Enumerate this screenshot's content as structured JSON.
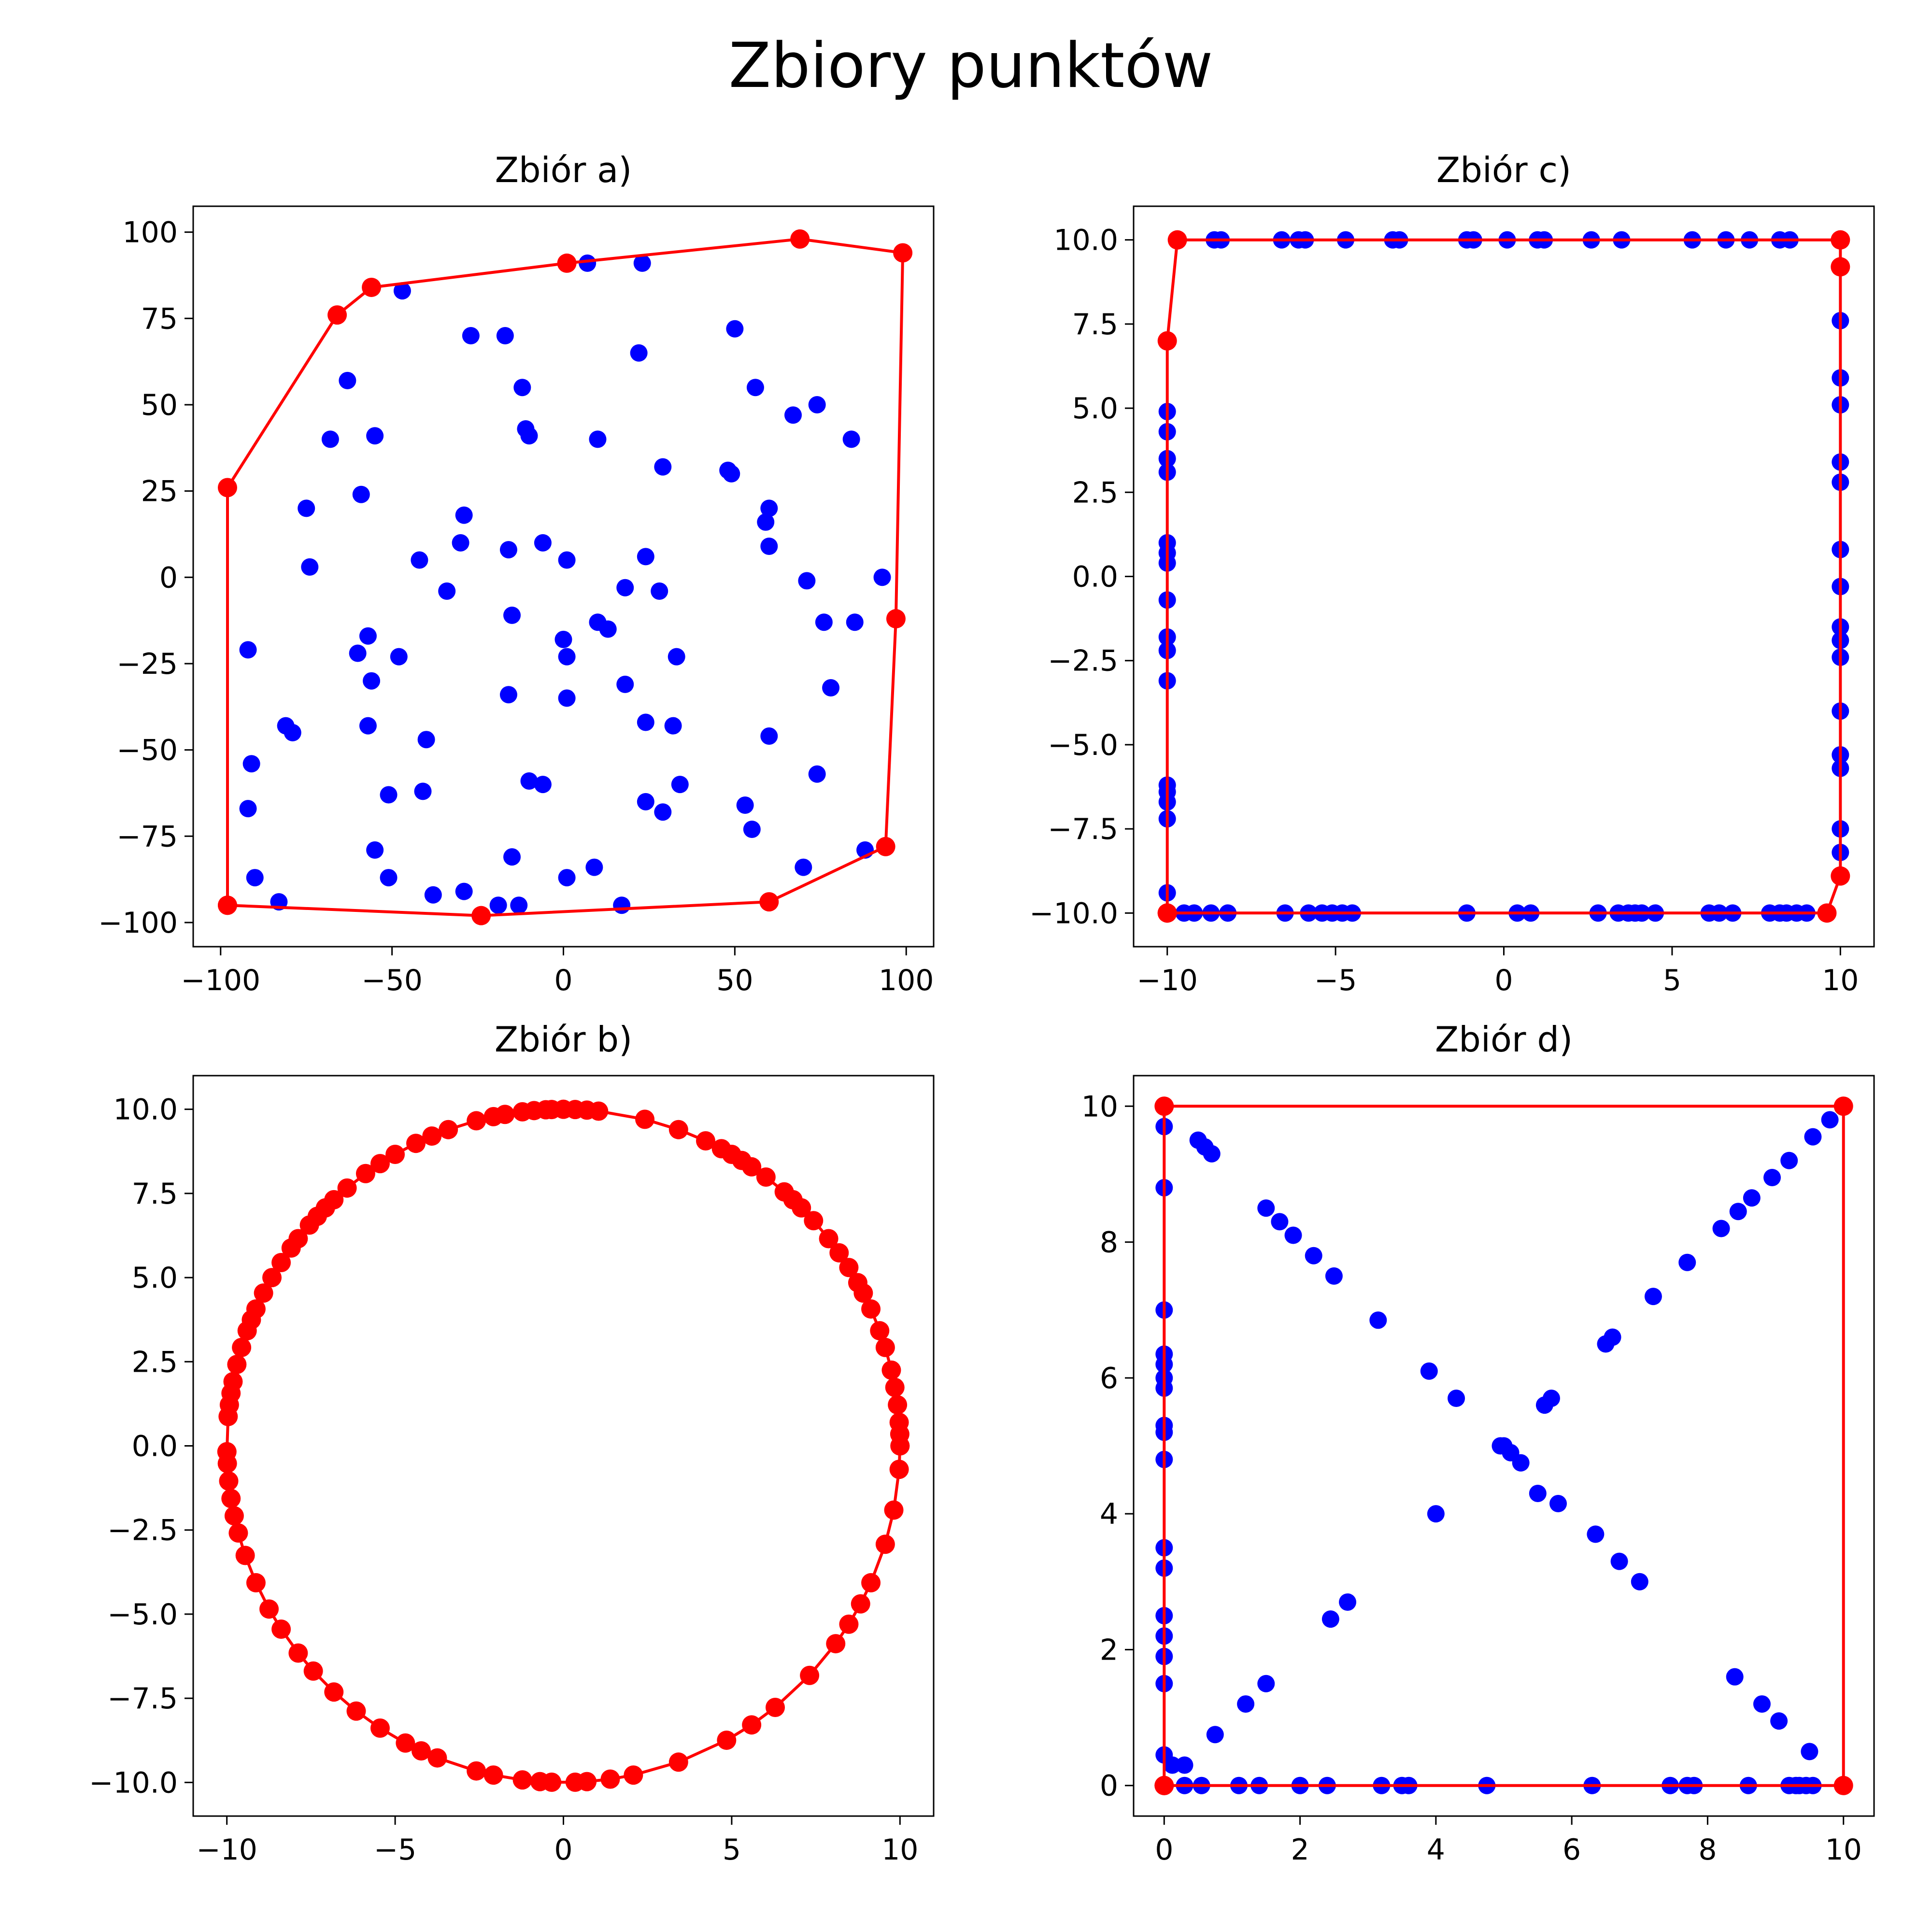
{
  "figure": {
    "title": "Zbiory punktów",
    "colors": {
      "points": "#0000ff",
      "hull": "#ff0000"
    }
  },
  "chart_data": [
    {
      "type": "scatter",
      "title": "Zbiór a)",
      "xlabel": "",
      "ylabel": "",
      "xlim": [
        -108,
        108
      ],
      "ylim": [
        -107,
        107.5
      ],
      "xticks": [
        -100,
        -50,
        0,
        50,
        100
      ],
      "yticks": [
        -100,
        -75,
        -50,
        -25,
        0,
        25,
        50,
        75,
        100
      ],
      "xtick_labels": [
        "−100",
        "−50",
        "0",
        "50",
        "100"
      ],
      "ytick_labels": [
        "−100",
        "−75",
        "−50",
        "−25",
        "0",
        "25",
        "50",
        "75",
        "100"
      ],
      "grid": false,
      "points": [
        [
          7,
          91
        ],
        [
          23,
          91
        ],
        [
          -47,
          83
        ],
        [
          -27,
          70
        ],
        [
          -17,
          70
        ],
        [
          22,
          65
        ],
        [
          50,
          72
        ],
        [
          -63,
          57
        ],
        [
          -12,
          55
        ],
        [
          56,
          55
        ],
        [
          67,
          47
        ],
        [
          74,
          50
        ],
        [
          -68,
          40
        ],
        [
          -55,
          41
        ],
        [
          -11,
          43
        ],
        [
          -10,
          41
        ],
        [
          10,
          40
        ],
        [
          84,
          40
        ],
        [
          29,
          32
        ],
        [
          48,
          31
        ],
        [
          49,
          30
        ],
        [
          -75,
          20
        ],
        [
          -59,
          24
        ],
        [
          -29,
          18
        ],
        [
          60,
          20
        ],
        [
          59,
          16
        ],
        [
          -16,
          8
        ],
        [
          -30,
          10
        ],
        [
          -6,
          10
        ],
        [
          60,
          9
        ],
        [
          24,
          6
        ],
        [
          1,
          5
        ],
        [
          -42,
          5
        ],
        [
          -74,
          3
        ],
        [
          71,
          -1
        ],
        [
          93,
          0
        ],
        [
          -34,
          -4
        ],
        [
          18,
          -3
        ],
        [
          28,
          -4
        ],
        [
          -15,
          -11
        ],
        [
          10,
          -13
        ],
        [
          13,
          -15
        ],
        [
          -92,
          -21
        ],
        [
          -57,
          -17
        ],
        [
          0,
          -18
        ],
        [
          -60,
          -22
        ],
        [
          -48,
          -23
        ],
        [
          1,
          -23
        ],
        [
          33,
          -23
        ],
        [
          85,
          -13
        ],
        [
          76,
          -13
        ],
        [
          -56,
          -30
        ],
        [
          18,
          -31
        ],
        [
          78,
          -32
        ],
        [
          -16,
          -34
        ],
        [
          1,
          -35
        ],
        [
          -81,
          -43
        ],
        [
          -79,
          -45
        ],
        [
          -57,
          -43
        ],
        [
          24,
          -42
        ],
        [
          32,
          -43
        ],
        [
          -40,
          -47
        ],
        [
          60,
          -46
        ],
        [
          -91,
          -54
        ],
        [
          -10,
          -59
        ],
        [
          -6,
          -60
        ],
        [
          74,
          -57
        ],
        [
          -51,
          -63
        ],
        [
          -41,
          -62
        ],
        [
          34,
          -60
        ],
        [
          -92,
          -67
        ],
        [
          24,
          -65
        ],
        [
          29,
          -68
        ],
        [
          53,
          -66
        ],
        [
          -55,
          -79
        ],
        [
          55,
          -73
        ],
        [
          -15,
          -81
        ],
        [
          -90,
          -87
        ],
        [
          -51,
          -87
        ],
        [
          1,
          -87
        ],
        [
          9,
          -84
        ],
        [
          70,
          -84
        ],
        [
          88,
          -79
        ],
        [
          -38,
          -92
        ],
        [
          -29,
          -91
        ],
        [
          -83,
          -94
        ],
        [
          -19,
          -95
        ],
        [
          -13,
          -95
        ],
        [
          17,
          -95
        ]
      ],
      "hull": [
        [
          -98,
          -95
        ],
        [
          -98,
          26
        ],
        [
          -66,
          76
        ],
        [
          -56,
          84
        ],
        [
          1,
          91
        ],
        [
          69,
          98
        ],
        [
          99,
          94
        ],
        [
          97,
          -12
        ],
        [
          94,
          -78
        ],
        [
          60,
          -94
        ],
        [
          -24,
          -98
        ],
        [
          -98,
          -95
        ]
      ]
    },
    {
      "type": "scatter",
      "title": "Zbiór c)",
      "xlabel": "",
      "ylabel": "",
      "xlim": [
        -11,
        11
      ],
      "ylim": [
        -11,
        11
      ],
      "xticks": [
        -10,
        -5,
        0,
        5,
        10
      ],
      "yticks": [
        -10,
        -7.5,
        -5,
        -2.5,
        0,
        2.5,
        5,
        7.5,
        10
      ],
      "xtick_labels": [
        "−10",
        "−5",
        "0",
        "5",
        "10"
      ],
      "ytick_labels": [
        "−10.0",
        "−7.5",
        "−5.0",
        "−2.5",
        "0.0",
        "2.5",
        "5.0",
        "7.5",
        "10.0"
      ],
      "grid": false,
      "points": [
        [
          -9.7,
          10
        ],
        [
          -8.6,
          10
        ],
        [
          -8.4,
          10
        ],
        [
          -6.6,
          10
        ],
        [
          -6.1,
          10
        ],
        [
          -5.9,
          10
        ],
        [
          -4.7,
          10
        ],
        [
          -3.3,
          10
        ],
        [
          -3.1,
          10
        ],
        [
          -1.1,
          10
        ],
        [
          -0.9,
          10
        ],
        [
          0.1,
          10
        ],
        [
          1.0,
          10
        ],
        [
          1.2,
          10
        ],
        [
          2.6,
          10
        ],
        [
          3.5,
          10
        ],
        [
          5.6,
          10
        ],
        [
          6.6,
          10
        ],
        [
          7.3,
          10
        ],
        [
          8.2,
          10
        ],
        [
          8.5,
          10
        ],
        [
          -10,
          4.9
        ],
        [
          -10,
          4.3
        ],
        [
          -10,
          3.5
        ],
        [
          -10,
          3.1
        ],
        [
          -10,
          1.0
        ],
        [
          -10,
          0.7
        ],
        [
          -10,
          0.4
        ],
        [
          -10,
          -0.7
        ],
        [
          -10,
          -1.8
        ],
        [
          -10,
          -2.2
        ],
        [
          -10,
          -3.1
        ],
        [
          -10,
          -6.2
        ],
        [
          -10,
          -6.4
        ],
        [
          -10,
          -6.7
        ],
        [
          -10,
          -7.2
        ],
        [
          -10,
          -9.4
        ],
        [
          10,
          7.6
        ],
        [
          10,
          5.9
        ],
        [
          10,
          5.1
        ],
        [
          10,
          3.4
        ],
        [
          10,
          2.8
        ],
        [
          10,
          0.8
        ],
        [
          10,
          -0.3
        ],
        [
          10,
          -1.5
        ],
        [
          10,
          -1.9
        ],
        [
          10,
          -2.4
        ],
        [
          10,
          -4.0
        ],
        [
          10,
          -5.3
        ],
        [
          10,
          -5.7
        ],
        [
          10,
          -7.5
        ],
        [
          10,
          -8.2
        ],
        [
          -9.5,
          -10
        ],
        [
          -9.2,
          -10
        ],
        [
          -8.7,
          -10
        ],
        [
          -8.2,
          -10
        ],
        [
          -6.5,
          -10
        ],
        [
          -5.8,
          -10
        ],
        [
          -5.4,
          -10
        ],
        [
          -5.1,
          -10
        ],
        [
          -4.8,
          -10
        ],
        [
          -4.5,
          -10
        ],
        [
          -1.1,
          -10
        ],
        [
          0.4,
          -10
        ],
        [
          0.8,
          -10
        ],
        [
          2.8,
          -10
        ],
        [
          3.4,
          -10
        ],
        [
          3.7,
          -10
        ],
        [
          3.9,
          -10
        ],
        [
          4.1,
          -10
        ],
        [
          4.5,
          -10
        ],
        [
          6.1,
          -10
        ],
        [
          6.4,
          -10
        ],
        [
          6.8,
          -10
        ],
        [
          7.9,
          -10
        ],
        [
          8.2,
          -10
        ],
        [
          8.4,
          -10
        ],
        [
          8.7,
          -10
        ],
        [
          9.0,
          -10
        ]
      ],
      "hull": [
        [
          -10,
          -10
        ],
        [
          -10,
          7
        ],
        [
          -9.7,
          10
        ],
        [
          10,
          10
        ],
        [
          10,
          9.2
        ],
        [
          10,
          -8.9
        ],
        [
          9.6,
          -10
        ],
        [
          -10,
          -10
        ]
      ]
    },
    {
      "type": "scatter",
      "title": "Zbiór b)",
      "xlabel": "",
      "ylabel": "",
      "xlim": [
        -11,
        11
      ],
      "ylim": [
        -11,
        11
      ],
      "xticks": [
        -10,
        -5,
        0,
        5,
        10
      ],
      "yticks": [
        -10,
        -7.5,
        -5,
        -2.5,
        0,
        2.5,
        5,
        7.5,
        10
      ],
      "xtick_labels": [
        "−10",
        "−5",
        "0",
        "5",
        "10"
      ],
      "ytick_labels": [
        "−10.0",
        "−7.5",
        "−5.0",
        "−2.5",
        "0.0",
        "2.5",
        "5.0",
        "7.5",
        "10.0"
      ],
      "grid": false,
      "points": [],
      "hull_angles_deg": [
        0,
        2,
        4,
        7,
        10,
        13,
        17,
        20,
        24,
        27,
        29,
        32,
        35,
        38,
        42,
        45,
        47,
        49,
        53,
        56,
        58,
        60,
        62,
        65,
        70,
        76,
        84,
        86,
        88,
        90,
        92,
        93,
        95,
        97,
        100,
        102,
        105,
        110,
        113,
        116,
        120,
        123,
        126,
        130,
        133,
        135,
        137,
        139,
        142,
        144,
        147,
        150,
        153,
        156,
        158,
        160,
        163,
        166,
        169,
        171,
        173,
        175,
        181,
        183,
        186,
        189,
        192,
        195,
        199,
        204,
        209,
        213,
        218,
        222,
        227,
        232,
        237,
        242,
        245,
        248,
        255,
        258,
        263,
        266,
        268,
        272,
        274,
        278,
        282,
        290,
        299,
        304,
        309,
        317,
        324,
        328,
        332,
        336,
        343,
        349,
        356,
        360
      ],
      "hull_radius": 10
    },
    {
      "type": "scatter",
      "title": "Zbiór d)",
      "xlabel": "",
      "ylabel": "",
      "xlim": [
        -0.45,
        10.45
      ],
      "ylim": [
        -0.45,
        10.45
      ],
      "xticks": [
        0,
        2,
        4,
        6,
        8,
        10
      ],
      "yticks": [
        0,
        2,
        4,
        6,
        8,
        10
      ],
      "xtick_labels": [
        "0",
        "2",
        "4",
        "6",
        "8",
        "10"
      ],
      "ytick_labels": [
        "0",
        "2",
        "4",
        "6",
        "8",
        "10"
      ],
      "grid": false,
      "points": [
        [
          0.12,
          0.3
        ],
        [
          0.3,
          0.3
        ],
        [
          0.75,
          0.75
        ],
        [
          1.2,
          1.2
        ],
        [
          1.5,
          1.5
        ],
        [
          2.45,
          2.45
        ],
        [
          2.7,
          2.7
        ],
        [
          4.0,
          4.0
        ],
        [
          4.95,
          5.0
        ],
        [
          5.0,
          5.0
        ],
        [
          5.6,
          5.6
        ],
        [
          5.7,
          5.7
        ],
        [
          6.5,
          6.5
        ],
        [
          6.6,
          6.6
        ],
        [
          7.2,
          7.2
        ],
        [
          7.7,
          7.7
        ],
        [
          8.2,
          8.2
        ],
        [
          8.45,
          8.45
        ],
        [
          8.65,
          8.65
        ],
        [
          8.95,
          8.95
        ],
        [
          9.2,
          9.2
        ],
        [
          9.55,
          9.55
        ],
        [
          9.8,
          9.8
        ],
        [
          0.5,
          9.5
        ],
        [
          0.6,
          9.4
        ],
        [
          0.7,
          9.3
        ],
        [
          1.5,
          8.5
        ],
        [
          1.7,
          8.3
        ],
        [
          1.9,
          8.1
        ],
        [
          2.2,
          7.8
        ],
        [
          2.5,
          7.5
        ],
        [
          3.15,
          6.85
        ],
        [
          3.9,
          6.1
        ],
        [
          4.3,
          5.7
        ],
        [
          5.1,
          4.9
        ],
        [
          5.25,
          4.75
        ],
        [
          5.5,
          4.3
        ],
        [
          5.8,
          4.15
        ],
        [
          6.35,
          3.7
        ],
        [
          6.7,
          3.3
        ],
        [
          7.0,
          3.0
        ],
        [
          8.4,
          1.6
        ],
        [
          8.8,
          1.2
        ],
        [
          9.05,
          0.95
        ],
        [
          9.5,
          0.5
        ],
        [
          0,
          9.7
        ],
        [
          0,
          8.8
        ],
        [
          0,
          7.0
        ],
        [
          0,
          6.35
        ],
        [
          0,
          6.2
        ],
        [
          0,
          6.0
        ],
        [
          0,
          5.85
        ],
        [
          0,
          5.3
        ],
        [
          0,
          5.2
        ],
        [
          0,
          4.8
        ],
        [
          0,
          3.5
        ],
        [
          0,
          3.2
        ],
        [
          0,
          2.5
        ],
        [
          0,
          2.2
        ],
        [
          0,
          1.9
        ],
        [
          0,
          1.5
        ],
        [
          0,
          0.45
        ],
        [
          0.3,
          0
        ],
        [
          0.55,
          0
        ],
        [
          1.1,
          0
        ],
        [
          1.4,
          0
        ],
        [
          2.0,
          0
        ],
        [
          2.4,
          0
        ],
        [
          3.2,
          0
        ],
        [
          3.5,
          0
        ],
        [
          3.6,
          0
        ],
        [
          4.75,
          0
        ],
        [
          6.3,
          0
        ],
        [
          7.45,
          0
        ],
        [
          7.7,
          0
        ],
        [
          7.8,
          0
        ],
        [
          8.6,
          0
        ],
        [
          9.2,
          0
        ],
        [
          9.3,
          0
        ],
        [
          9.35,
          0
        ],
        [
          9.45,
          0
        ],
        [
          9.55,
          0
        ]
      ],
      "hull": [
        [
          0,
          0
        ],
        [
          10,
          0
        ],
        [
          10,
          10
        ],
        [
          0,
          10
        ],
        [
          0,
          0
        ]
      ]
    }
  ]
}
